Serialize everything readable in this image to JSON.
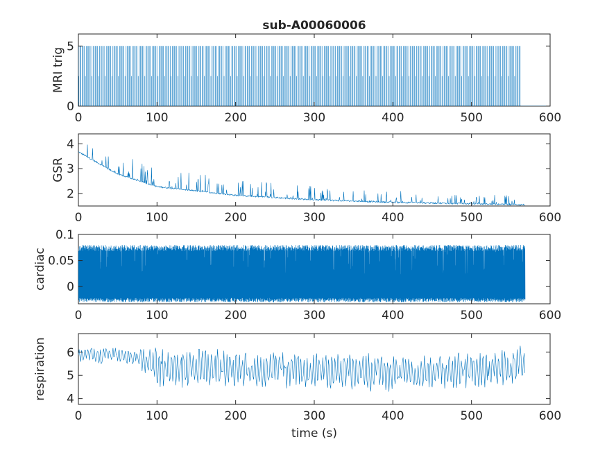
{
  "chart_data": [
    {
      "type": "line",
      "title": "sub-A00060006",
      "xlabel": "",
      "ylabel": "MRI trig",
      "xlim": [
        0,
        600
      ],
      "ylim": [
        0,
        6
      ],
      "xticks": [
        0,
        100,
        200,
        300,
        400,
        500,
        600
      ],
      "yticks": [
        0,
        5
      ],
      "series_color": "#0072BD",
      "signal": {
        "kind": "trigger_pulses",
        "t_end": 563,
        "period_s": 1.4,
        "high": 5,
        "low": 0,
        "half_level": 2.5
      }
    },
    {
      "type": "line",
      "title": "",
      "xlabel": "",
      "ylabel": "GSR",
      "xlim": [
        0,
        600
      ],
      "ylim": [
        1.5,
        4.4
      ],
      "xticks": [
        0,
        100,
        200,
        300,
        400,
        500,
        600
      ],
      "yticks": [
        2,
        3,
        4
      ],
      "series_color": "#0072BD",
      "signal": {
        "kind": "decay",
        "t_end": 568,
        "baseline": [
          [
            0,
            3.65
          ],
          [
            50,
            2.75
          ],
          [
            100,
            2.25
          ],
          [
            200,
            1.9
          ],
          [
            300,
            1.72
          ],
          [
            400,
            1.62
          ],
          [
            500,
            1.56
          ],
          [
            568,
            1.52
          ]
        ],
        "spike_max": 0.9
      }
    },
    {
      "type": "line",
      "title": "",
      "xlabel": "",
      "ylabel": "cardiac",
      "xlim": [
        0,
        600
      ],
      "ylim": [
        -0.033,
        0.1
      ],
      "xticks": [
        0,
        100,
        200,
        300,
        400,
        500,
        600
      ],
      "yticks": [
        0,
        0.05,
        0.1
      ],
      "series_color": "#0072BD",
      "signal": {
        "kind": "dense_band",
        "t_end": 568,
        "lower": -0.03,
        "upper": 0.08
      }
    },
    {
      "type": "line",
      "title": "",
      "xlabel": "time (s)",
      "ylabel": "respiration",
      "xlim": [
        0,
        600
      ],
      "ylim": [
        3.75,
        6.8
      ],
      "xticks": [
        0,
        100,
        200,
        300,
        400,
        500,
        600
      ],
      "yticks": [
        4,
        5,
        6
      ],
      "series_color": "#0072BD",
      "signal": {
        "kind": "oscillation",
        "t_end": 568,
        "mean": [
          [
            0,
            5.9
          ],
          [
            80,
            5.8
          ],
          [
            100,
            5.3
          ],
          [
            200,
            5.3
          ],
          [
            300,
            5.2
          ],
          [
            400,
            5.1
          ],
          [
            500,
            5.2
          ],
          [
            568,
            5.5
          ]
        ],
        "amp": 0.6
      }
    }
  ]
}
